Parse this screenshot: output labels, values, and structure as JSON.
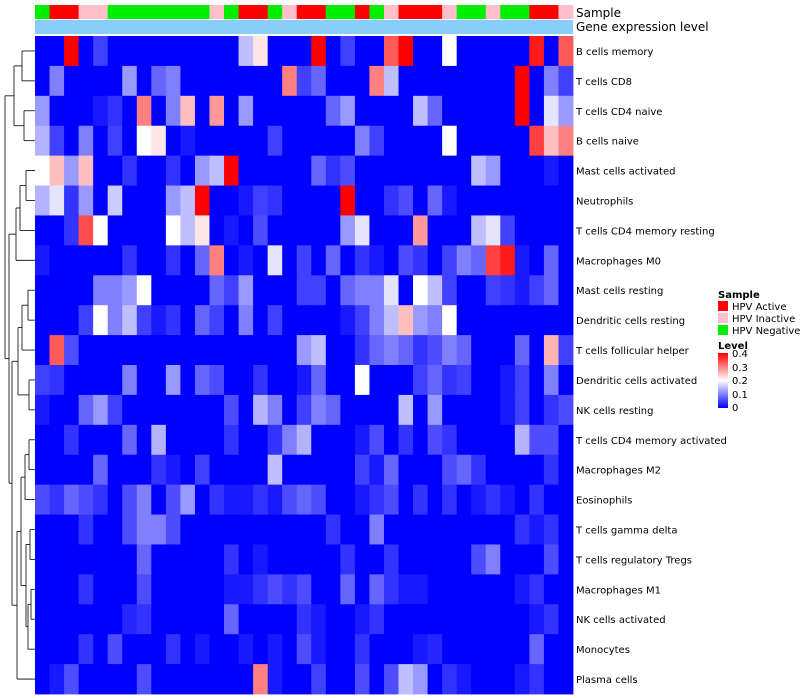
{
  "chart_data": {
    "type": "heatmap",
    "annotation_labels": {
      "sample": "Sample",
      "gene_expression": "Gene expression level"
    },
    "groups": {
      "HPV Active": "#ff0000",
      "HPV Inactive": "#ffc0cb",
      "HPV Negative": "#00ee00"
    },
    "legend": {
      "sample_title": "Sample",
      "sample_entries": [
        "HPV Active",
        "HPV Inactive",
        "HPV Negative"
      ],
      "level_title": "Level",
      "level_ticks": [
        "0.4",
        "0.3",
        "0.2",
        "0.1",
        "0"
      ],
      "level_range": [
        0,
        0.4
      ],
      "colors": {
        "low": "#0000ff",
        "mid": "#ffffff",
        "high": "#ff0000"
      }
    },
    "sample_groups": [
      "HPV Negative",
      "HPV Active",
      "HPV Active",
      "HPV Inactive",
      "HPV Inactive",
      "HPV Negative",
      "HPV Negative",
      "HPV Negative",
      "HPV Negative",
      "HPV Negative",
      "HPV Negative",
      "HPV Negative",
      "HPV Inactive",
      "HPV Negative",
      "HPV Active",
      "HPV Active",
      "HPV Negative",
      "HPV Inactive",
      "HPV Active",
      "HPV Active",
      "HPV Negative",
      "HPV Negative",
      "HPV Active",
      "HPV Negative",
      "HPV Inactive",
      "HPV Active",
      "HPV Active",
      "HPV Active",
      "HPV Inactive",
      "HPV Negative",
      "HPV Negative",
      "HPV Inactive",
      "HPV Negative",
      "HPV Negative",
      "HPV Active",
      "HPV Active",
      "HPV Inactive"
    ],
    "rows": [
      "B cells memory",
      "T cells CD8",
      "T cells CD4 naive",
      "B cells naive",
      "Mast cells activated",
      "Neutrophils",
      "T cells CD4 memory resting",
      "Macrophages M0",
      "Mast cells resting",
      "Dendritic cells resting",
      "T cells follicular helper",
      "Dendritic cells activated",
      "NK cells resting",
      "T cells CD4 memory activated",
      "Macrophages M2",
      "Eosinophils",
      "T cells gamma delta",
      "T cells regulatory  Tregs",
      "Macrophages M1",
      "NK cells activated",
      "Monocytes",
      "Plasma cells"
    ],
    "values": [
      [
        0,
        0,
        0.4,
        0,
        0.05,
        0,
        0,
        0,
        0,
        0,
        0,
        0,
        0,
        0,
        0.15,
        0.22,
        0,
        0,
        0,
        0.4,
        0,
        0.05,
        0,
        0,
        0.33,
        0.4,
        0,
        0,
        0.2,
        0,
        0,
        0,
        0,
        0,
        0.38,
        0,
        0.33
      ],
      [
        0,
        0.1,
        0,
        0,
        0,
        0,
        0.12,
        0,
        0.08,
        0.1,
        0,
        0,
        0,
        0,
        0,
        0,
        0,
        0.3,
        0.05,
        0.08,
        0,
        0,
        0,
        0.3,
        0.15,
        0,
        0,
        0,
        0,
        0,
        0,
        0,
        0,
        0.4,
        0,
        0.1,
        0.05
      ],
      [
        0.12,
        0,
        0,
        0,
        0.02,
        0.04,
        0,
        0.3,
        0,
        0.1,
        0.25,
        0,
        0.28,
        0,
        0.12,
        0,
        0,
        0,
        0,
        0,
        0.08,
        0.12,
        0,
        0,
        0,
        0,
        0.15,
        0.08,
        0,
        0,
        0,
        0,
        0,
        0.4,
        0,
        0.18,
        0.12
      ],
      [
        0.14,
        0.05,
        0,
        0.1,
        0,
        0.05,
        0,
        0.2,
        0.22,
        0,
        0.02,
        0,
        0,
        0,
        0,
        0,
        0.05,
        0,
        0,
        0,
        0,
        0,
        0.1,
        0.05,
        0,
        0,
        0,
        0,
        0.2,
        0,
        0,
        0,
        0,
        0,
        0.35,
        0.25,
        0.3
      ],
      [
        0.2,
        0.25,
        0.12,
        0.25,
        0,
        0,
        0.04,
        0,
        0,
        0.04,
        0,
        0.12,
        0.15,
        0.4,
        0,
        0,
        0,
        0,
        0,
        0.08,
        0.04,
        0.06,
        0,
        0,
        0,
        0,
        0,
        0,
        0,
        0,
        0.15,
        0.12,
        0,
        0,
        0,
        0.02,
        0
      ],
      [
        0.14,
        0.18,
        0.04,
        0.12,
        0,
        0.16,
        0,
        0,
        0,
        0.12,
        0.15,
        0.4,
        0,
        0,
        0.02,
        0.05,
        0.04,
        0,
        0,
        0,
        0,
        0.4,
        0,
        0,
        0.04,
        0.06,
        0,
        0.08,
        0.02,
        0,
        0,
        0,
        0,
        0,
        0,
        0,
        0
      ],
      [
        0,
        0,
        0.04,
        0.34,
        0.2,
        0,
        0,
        0,
        0,
        0.2,
        0.15,
        0.22,
        0,
        0.02,
        0,
        0.06,
        0,
        0,
        0,
        0,
        0,
        0.12,
        0.18,
        0,
        0,
        0,
        0.28,
        0,
        0,
        0,
        0.15,
        0.18,
        0.05,
        0,
        0,
        0,
        0
      ],
      [
        0.02,
        0,
        0,
        0,
        0,
        0,
        0.04,
        0,
        0,
        0.04,
        0,
        0.08,
        0.3,
        0,
        0.02,
        0,
        0.18,
        0,
        0.05,
        0,
        0.08,
        0,
        0.04,
        0.02,
        0,
        0.06,
        0.04,
        0,
        0.05,
        0.1,
        0.08,
        0.35,
        0.38,
        0.02,
        0,
        0.08,
        0
      ],
      [
        0,
        0,
        0,
        0,
        0.1,
        0.1,
        0.12,
        0.2,
        0,
        0,
        0,
        0,
        0.08,
        0.05,
        0.12,
        0,
        0,
        0,
        0.05,
        0.05,
        0,
        0.08,
        0.1,
        0.1,
        0.18,
        0,
        0.2,
        0.15,
        0.05,
        0,
        0,
        0.05,
        0.04,
        0.02,
        0.05,
        0.08,
        0
      ],
      [
        0,
        0,
        0,
        0.05,
        0.2,
        0.1,
        0.15,
        0.05,
        0.02,
        0.04,
        0,
        0.08,
        0.05,
        0,
        0.1,
        0,
        0.05,
        0,
        0,
        0,
        0,
        0.02,
        0.05,
        0.1,
        0.15,
        0.25,
        0.12,
        0.1,
        0.2,
        0,
        0,
        0,
        0,
        0,
        0,
        0,
        0
      ],
      [
        0,
        0.33,
        0.06,
        0,
        0,
        0,
        0,
        0,
        0,
        0,
        0,
        0,
        0,
        0,
        0,
        0,
        0,
        0,
        0.12,
        0.15,
        0,
        0,
        0.04,
        0.08,
        0.1,
        0.08,
        0.04,
        0.06,
        0.1,
        0.08,
        0,
        0,
        0,
        0.08,
        0,
        0.26,
        0.05
      ],
      [
        0.05,
        0.04,
        0,
        0,
        0,
        0,
        0.1,
        0,
        0,
        0.12,
        0,
        0.08,
        0.06,
        0,
        0,
        0.04,
        0,
        0,
        0.02,
        0.08,
        0,
        0,
        0.2,
        0,
        0,
        0,
        0.05,
        0.08,
        0.04,
        0.05,
        0,
        0,
        0.02,
        0.05,
        0,
        0.1,
        0
      ],
      [
        0.02,
        0,
        0,
        0.08,
        0.12,
        0.05,
        0,
        0,
        0,
        0,
        0,
        0,
        0,
        0.06,
        0,
        0.14,
        0.1,
        0,
        0.05,
        0.1,
        0.08,
        0,
        0,
        0,
        0,
        0.15,
        0,
        0.12,
        0,
        0,
        0,
        0,
        0.02,
        0.05,
        0,
        0.04,
        0.06
      ],
      [
        0,
        0,
        0.04,
        0,
        0,
        0,
        0.08,
        0,
        0.14,
        0,
        0,
        0,
        0,
        0.04,
        0,
        0,
        0.04,
        0.1,
        0.14,
        0,
        0,
        0,
        0.02,
        0.06,
        0,
        0.04,
        0,
        0.06,
        0.04,
        0,
        0,
        0,
        0,
        0.14,
        0.06,
        0.06,
        0
      ],
      [
        0,
        0,
        0,
        0,
        0.08,
        0,
        0,
        0,
        0.04,
        0.02,
        0,
        0.05,
        0,
        0,
        0,
        0,
        0.15,
        0,
        0,
        0,
        0,
        0,
        0.05,
        0.02,
        0.08,
        0,
        0,
        0,
        0.06,
        0.08,
        0.04,
        0,
        0,
        0,
        0,
        0.04,
        0
      ],
      [
        0.06,
        0.04,
        0.08,
        0.06,
        0.04,
        0,
        0.06,
        0.1,
        0,
        0.06,
        0.12,
        0,
        0.04,
        0.02,
        0.02,
        0.04,
        0.02,
        0.06,
        0.08,
        0.06,
        0,
        0,
        0.02,
        0.04,
        0.06,
        0,
        0.04,
        0,
        0.04,
        0,
        0.02,
        0.04,
        0.02,
        0,
        0.04,
        0,
        0
      ],
      [
        0,
        0,
        0,
        0.04,
        0,
        0,
        0.06,
        0.1,
        0.1,
        0.06,
        0,
        0,
        0,
        0,
        0,
        0,
        0,
        0,
        0,
        0,
        0.04,
        0,
        0,
        0.1,
        0,
        0,
        0,
        0,
        0,
        0,
        0,
        0,
        0,
        0.04,
        0.02,
        0.04,
        0
      ],
      [
        0,
        0,
        0,
        0,
        0,
        0,
        0,
        0.08,
        0,
        0,
        0,
        0,
        0,
        0.04,
        0,
        0.02,
        0,
        0,
        0,
        0,
        0,
        0.04,
        0,
        0,
        0.04,
        0,
        0,
        0,
        0,
        0,
        0.06,
        0.1,
        0,
        0,
        0,
        0.06,
        0
      ],
      [
        0,
        0,
        0,
        0.04,
        0,
        0,
        0,
        0.06,
        0,
        0,
        0,
        0,
        0,
        0.02,
        0.02,
        0.04,
        0.06,
        0.04,
        0.06,
        0,
        0,
        0.08,
        0,
        0.08,
        0.04,
        0.02,
        0.02,
        0,
        0,
        0,
        0,
        0,
        0,
        0.02,
        0.04,
        0,
        0
      ],
      [
        0,
        0,
        0,
        0,
        0,
        0,
        0.03,
        0.04,
        0,
        0,
        0,
        0,
        0,
        0.08,
        0,
        0,
        0,
        0,
        0.04,
        0.02,
        0,
        0,
        0.02,
        0.04,
        0,
        0,
        0,
        0,
        0,
        0,
        0,
        0,
        0,
        0,
        0.02,
        0.04,
        0
      ],
      [
        0,
        0,
        0,
        0.04,
        0,
        0.06,
        0,
        0,
        0,
        0.04,
        0,
        0.02,
        0,
        0,
        0.02,
        0,
        0.02,
        0,
        0.06,
        0.02,
        0,
        0,
        0.04,
        0,
        0,
        0,
        0.02,
        0.03,
        0,
        0,
        0,
        0,
        0,
        0,
        0.08,
        0,
        0
      ],
      [
        0,
        0.02,
        0.06,
        0,
        0,
        0,
        0,
        0.06,
        0,
        0,
        0,
        0,
        0,
        0,
        0,
        0.3,
        0.02,
        0,
        0,
        0.05,
        0,
        0,
        0.06,
        0,
        0.06,
        0.15,
        0.12,
        0,
        0.04,
        0.02,
        0,
        0,
        0,
        0.02,
        0.04,
        0,
        0
      ]
    ]
  }
}
